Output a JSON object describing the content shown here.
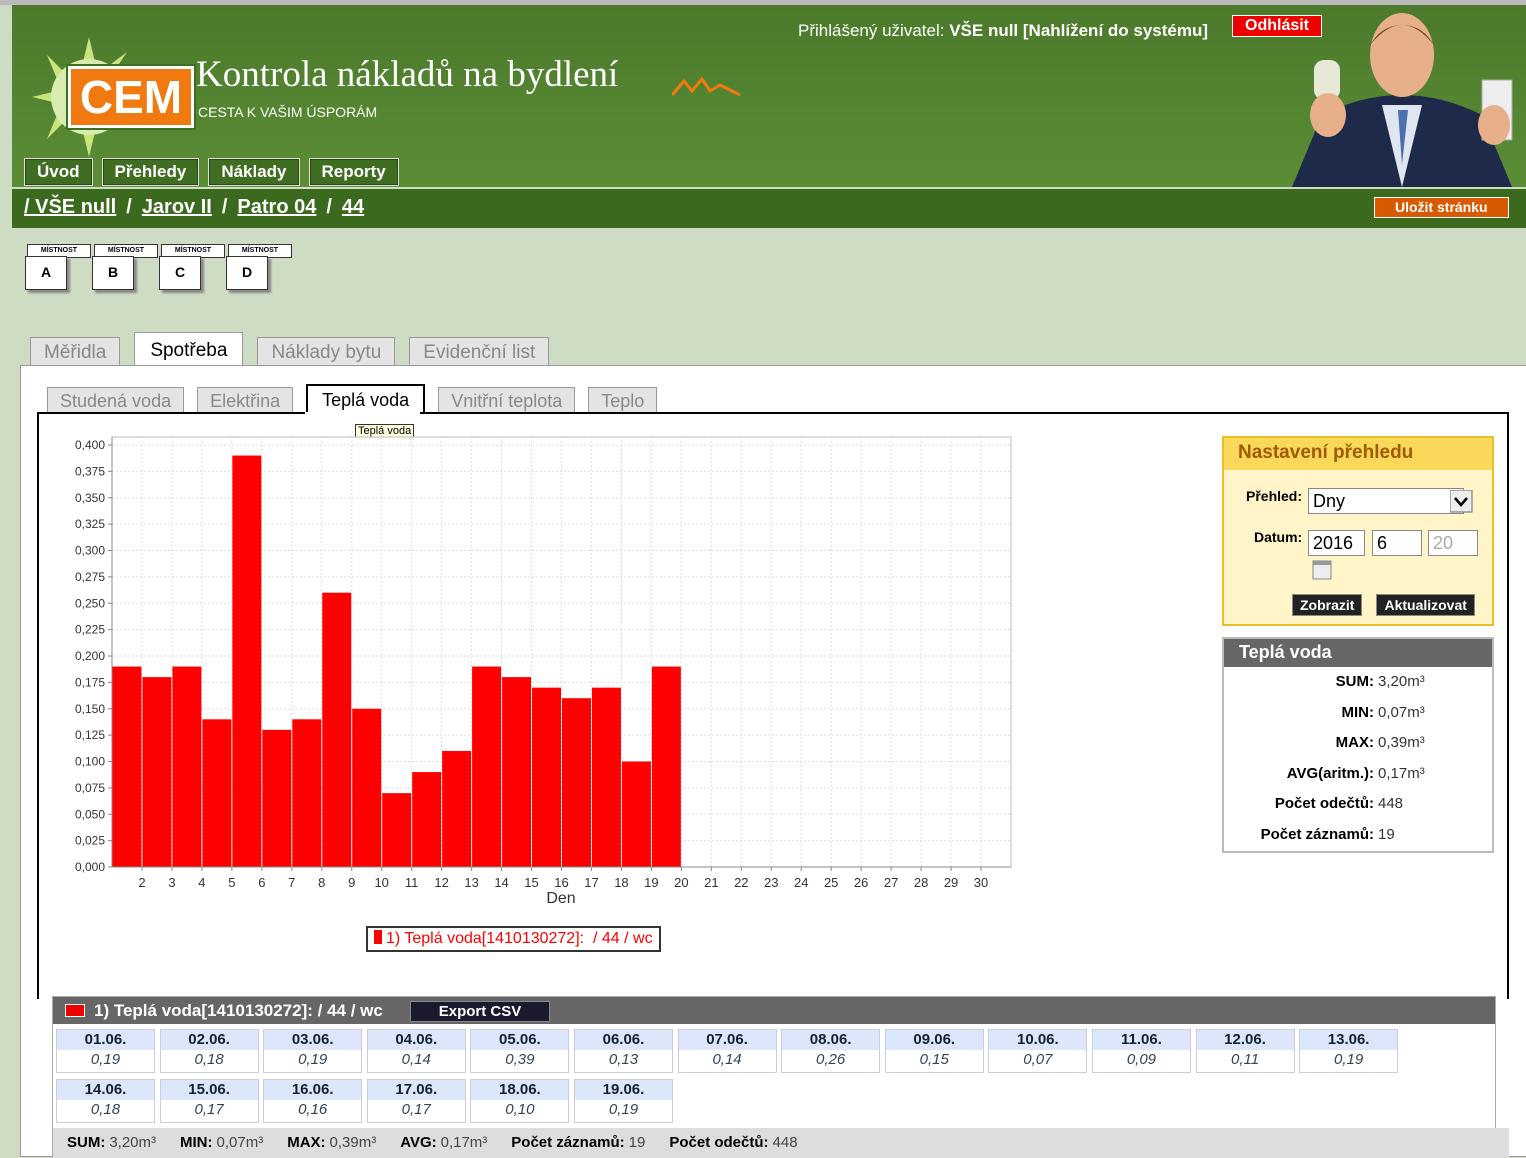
{
  "header": {
    "user_label": "Přihlášený uživatel:",
    "user": "VŠE null [Nahlížení do systému]",
    "logout": "Odhlásit",
    "logo": "CEM",
    "title": "Kontrola nákladů na bydlení",
    "subtitle": "CESTA K VAŠIM ÚSPORÁM",
    "save_page": "Uložit stránku"
  },
  "nav": [
    "Úvod",
    "Přehledy",
    "Náklady",
    "Reporty"
  ],
  "breadcrumb": {
    "items": [
      "/ VŠE null",
      "Jarov II",
      "Patro 04",
      "44"
    ],
    "separator": "/"
  },
  "rooms": {
    "label": "MÍSTNOST",
    "items": [
      "A",
      "B",
      "C",
      "D"
    ]
  },
  "tabs": {
    "items": [
      "Měřidla",
      "Spotřeba",
      "Náklady bytu",
      "Evidenční list"
    ],
    "active": 1
  },
  "subtabs": {
    "items": [
      "Studená voda",
      "Elektřina",
      "Teplá voda",
      "Vnitřní teplota",
      "Teplo"
    ],
    "active": 2,
    "tooltip": "Teplá voda"
  },
  "chart_data": {
    "type": "histogram",
    "xlabel": "Den",
    "bins": [
      1,
      2,
      3,
      4,
      5,
      6,
      7,
      8,
      9,
      10,
      11,
      12,
      13,
      14,
      15,
      16,
      17,
      18,
      19,
      20
    ],
    "series": [
      {
        "name": "1) Teplá voda[1410130272]:  / 44 / wc",
        "color": "#ff0000",
        "values": [
          0.19,
          0.18,
          0.19,
          0.14,
          0.39,
          0.13,
          0.14,
          0.26,
          0.15,
          0.07,
          0.09,
          0.11,
          0.19,
          0.18,
          0.17,
          0.16,
          0.17,
          0.1,
          0.19
        ]
      }
    ],
    "xlim": [
      1,
      31
    ],
    "xticks": [
      2,
      3,
      4,
      5,
      6,
      7,
      8,
      9,
      10,
      11,
      12,
      13,
      14,
      15,
      16,
      17,
      18,
      19,
      20,
      21,
      22,
      23,
      24,
      25,
      26,
      27,
      28,
      29,
      30
    ],
    "ylim": [
      0,
      0.4
    ],
    "yticks": [
      {
        "value": 0,
        "label": "0,000"
      },
      {
        "value": 0.025,
        "label": "0,025"
      },
      {
        "value": 0.05,
        "label": "0,050"
      },
      {
        "value": 0.075,
        "label": "0,075"
      },
      {
        "value": 0.1,
        "label": "0,100"
      },
      {
        "value": 0.125,
        "label": "0,125"
      },
      {
        "value": 0.15,
        "label": "0,150"
      },
      {
        "value": 0.175,
        "label": "0,175"
      },
      {
        "value": 0.2,
        "label": "0,200"
      },
      {
        "value": 0.225,
        "label": "0,225"
      },
      {
        "value": 0.25,
        "label": "0,250"
      },
      {
        "value": 0.275,
        "label": "0,275"
      },
      {
        "value": 0.3,
        "label": "0,300"
      },
      {
        "value": 0.325,
        "label": "0,325"
      },
      {
        "value": 0.35,
        "label": "0,350"
      },
      {
        "value": 0.375,
        "label": "0,375"
      },
      {
        "value": 0.4,
        "label": "0,400"
      }
    ],
    "grid": true
  },
  "settings": {
    "title": "Nastavení přehledu",
    "view_label": "Přehled:",
    "view": "Dny",
    "date_label": "Datum:",
    "year": "2016",
    "month": "6",
    "day": "20",
    "buttons": [
      "Zobrazit",
      "Aktualizovat"
    ]
  },
  "stats": {
    "title": "Teplá voda",
    "rows": [
      {
        "label": "SUM:",
        "value": "3,20m³"
      },
      {
        "label": "MIN:",
        "value": "0,07m³"
      },
      {
        "label": "MAX:",
        "value": "0,39m³"
      },
      {
        "label": "AVG(aritm.):",
        "value": "0,17m³"
      },
      {
        "label": "Počet odečtů:",
        "value": "448"
      },
      {
        "label": "Počet záznamů:",
        "value": "19"
      }
    ]
  },
  "table": {
    "title": "1) Teplá voda[1410130272]: / 44 / wc",
    "export": "Export CSV",
    "cells": [
      {
        "date": "01.06.",
        "value": "0,19"
      },
      {
        "date": "02.06.",
        "value": "0,18"
      },
      {
        "date": "03.06.",
        "value": "0,19"
      },
      {
        "date": "04.06.",
        "value": "0,14"
      },
      {
        "date": "05.06.",
        "value": "0,39"
      },
      {
        "date": "06.06.",
        "value": "0,13"
      },
      {
        "date": "07.06.",
        "value": "0,14"
      },
      {
        "date": "08.06.",
        "value": "0,26"
      },
      {
        "date": "09.06.",
        "value": "0,15"
      },
      {
        "date": "10.06.",
        "value": "0,07"
      },
      {
        "date": "11.06.",
        "value": "0,09"
      },
      {
        "date": "12.06.",
        "value": "0,11"
      },
      {
        "date": "13.06.",
        "value": "0,19"
      },
      {
        "date": "14.06.",
        "value": "0,18"
      },
      {
        "date": "15.06.",
        "value": "0,17"
      },
      {
        "date": "16.06.",
        "value": "0,16"
      },
      {
        "date": "17.06.",
        "value": "0,17"
      },
      {
        "date": "18.06.",
        "value": "0,10"
      },
      {
        "date": "19.06.",
        "value": "0,19"
      }
    ],
    "summary": [
      {
        "label": "SUM:",
        "value": "3,20m³"
      },
      {
        "label": "MIN:",
        "value": "0,07m³"
      },
      {
        "label": "MAX:",
        "value": "0,39m³"
      },
      {
        "label": "AVG:",
        "value": "0,17m³"
      },
      {
        "label": "Počet záznamů:",
        "value": "19"
      },
      {
        "label": "Počet odečtů:",
        "value": "448"
      }
    ]
  }
}
